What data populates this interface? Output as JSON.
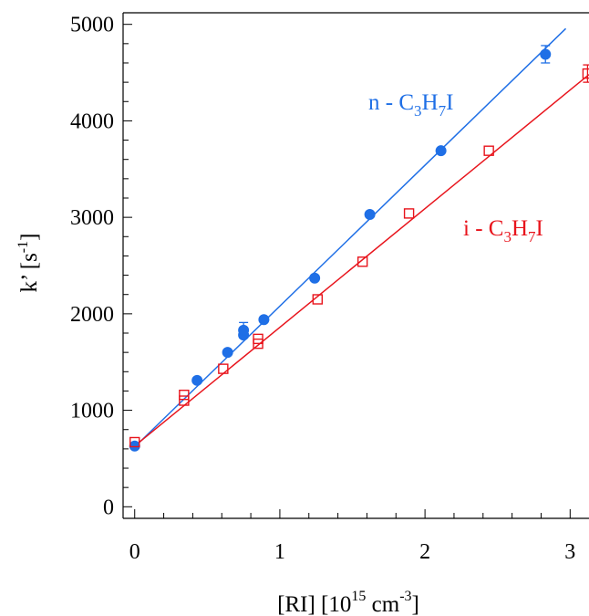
{
  "chart_data": {
    "type": "scatter",
    "xlabel": "[RI] [10^15 cm^-3]",
    "ylabel": "k’ [s^-1]",
    "xlabel_parts": {
      "a": "[RI] [10",
      "b": "15",
      "c": " cm",
      "d": "-3",
      "e": "]"
    },
    "ylabel_parts": {
      "a": "k’ [s",
      "b": "-1",
      "c": "]"
    },
    "xlim": [
      -0.08,
      3.13
    ],
    "ylim": [
      -120,
      5120
    ],
    "xticks": [
      0,
      1,
      2,
      3
    ],
    "xtick_labels": [
      "0",
      "1",
      "2",
      "3"
    ],
    "yticks": [
      0,
      1000,
      2000,
      3000,
      4000,
      5000
    ],
    "ytick_labels": [
      "0",
      "1000",
      "2000",
      "3000",
      "4000",
      "5000"
    ],
    "grid": false,
    "legend": "none",
    "series": [
      {
        "name": "n - C3H7I",
        "name_parts": {
          "a": "n - C",
          "b": "3",
          "c": "H",
          "d": "7",
          "e": "I"
        },
        "color": "#1f6fe6",
        "marker": "filled-circle",
        "points": [
          {
            "x": 0.0,
            "y": 630
          },
          {
            "x": 0.43,
            "y": 1310
          },
          {
            "x": 0.64,
            "y": 1600
          },
          {
            "x": 0.75,
            "y": 1780
          },
          {
            "x": 0.75,
            "y": 1830
          },
          {
            "x": 0.89,
            "y": 1940
          },
          {
            "x": 1.24,
            "y": 2370
          },
          {
            "x": 1.62,
            "y": 3030
          },
          {
            "x": 2.11,
            "y": 3690
          },
          {
            "x": 2.83,
            "y": 4690
          }
        ],
        "error_bars": [
          {
            "x": 0.75,
            "y": 1830,
            "err": 80
          },
          {
            "x": 2.83,
            "y": 4690,
            "err": 90
          }
        ],
        "fit": {
          "slope": 1460,
          "intercept": 620,
          "x_range": [
            0,
            2.97
          ]
        }
      },
      {
        "name": "i - C3H7I",
        "name_parts": {
          "a": "i - C",
          "b": "3",
          "c": "H",
          "d": "7",
          "e": "I"
        },
        "color": "#e8141c",
        "marker": "open-square",
        "points": [
          {
            "x": 0.0,
            "y": 670
          },
          {
            "x": 0.34,
            "y": 1100
          },
          {
            "x": 0.34,
            "y": 1160
          },
          {
            "x": 0.61,
            "y": 1430
          },
          {
            "x": 0.85,
            "y": 1690
          },
          {
            "x": 0.85,
            "y": 1740
          },
          {
            "x": 1.26,
            "y": 2150
          },
          {
            "x": 1.57,
            "y": 2540
          },
          {
            "x": 1.89,
            "y": 3040
          },
          {
            "x": 2.44,
            "y": 3690
          },
          {
            "x": 3.12,
            "y": 4490
          }
        ],
        "error_bars": [
          {
            "x": 3.12,
            "y": 4490,
            "err": 90
          }
        ],
        "fit": {
          "slope": 1230,
          "intercept": 630,
          "x_range": [
            0,
            3.13
          ]
        }
      }
    ]
  }
}
